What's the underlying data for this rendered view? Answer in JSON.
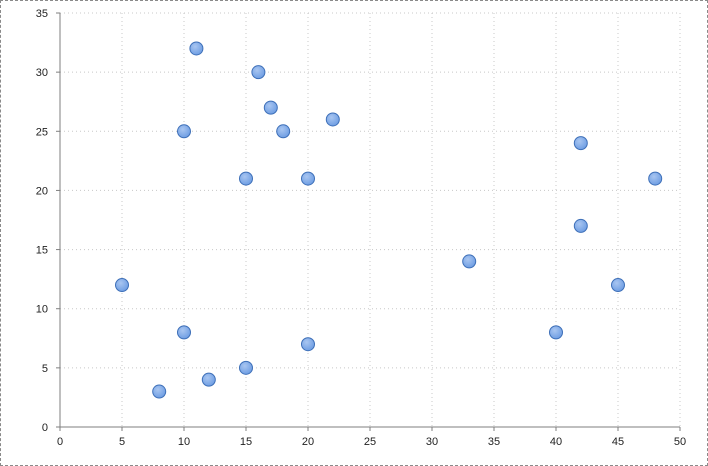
{
  "chart_data": {
    "type": "scatter",
    "title": "",
    "xlabel": "",
    "ylabel": "",
    "xlim": [
      0,
      50
    ],
    "ylim": [
      0,
      35
    ],
    "x_ticks": [
      0,
      5,
      10,
      15,
      20,
      25,
      30,
      35,
      40,
      45,
      50
    ],
    "y_ticks": [
      0,
      5,
      10,
      15,
      20,
      25,
      30,
      35
    ],
    "grid": "dotted",
    "legend": "none",
    "marker_color": "#6f9ee3",
    "marker_edge_color": "#3d6fb8",
    "series": [
      {
        "points": [
          [
            5,
            12
          ],
          [
            8,
            3
          ],
          [
            10,
            25
          ],
          [
            10,
            8
          ],
          [
            11,
            32
          ],
          [
            12,
            4
          ],
          [
            15,
            21
          ],
          [
            15,
            5
          ],
          [
            16,
            30
          ],
          [
            17,
            27
          ],
          [
            18,
            25
          ],
          [
            20,
            21
          ],
          [
            20,
            7
          ],
          [
            22,
            26
          ],
          [
            33,
            14
          ],
          [
            40,
            8
          ],
          [
            42,
            24
          ],
          [
            42,
            17
          ],
          [
            45,
            12
          ],
          [
            48,
            21
          ]
        ]
      }
    ]
  }
}
